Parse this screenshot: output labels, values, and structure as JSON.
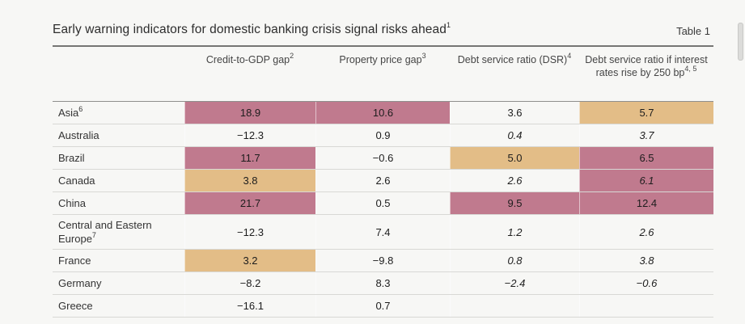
{
  "page": {
    "title": "Early warning indicators for domestic banking crisis signal risks ahead",
    "title_sup": "1",
    "table_label": "Table 1"
  },
  "colors": {
    "highlight_pink": "#c07a8e",
    "highlight_tan": "#e3bd87",
    "page_background": "#f7f7f5"
  },
  "table": {
    "columns": [
      {
        "label": "Credit-to-GDP gap",
        "sup": "2"
      },
      {
        "label": "Property price gap",
        "sup": "3"
      },
      {
        "label": "Debt service ratio (DSR)",
        "sup": "4"
      },
      {
        "label": "Debt service ratio if interest rates rise by 250 bp",
        "sup": "4, 5"
      }
    ],
    "rows": [
      {
        "label": "Asia",
        "sup": "6",
        "cells": [
          {
            "v": "18.9",
            "hl": "pink"
          },
          {
            "v": "10.6",
            "hl": "pink"
          },
          {
            "v": "3.6"
          },
          {
            "v": "5.7",
            "hl": "tan"
          }
        ]
      },
      {
        "label": "Australia",
        "cells": [
          {
            "v": "−12.3"
          },
          {
            "v": "0.9"
          },
          {
            "v": "0.4",
            "i": true
          },
          {
            "v": "3.7",
            "i": true
          }
        ]
      },
      {
        "label": "Brazil",
        "cells": [
          {
            "v": "11.7",
            "hl": "pink"
          },
          {
            "v": "−0.6"
          },
          {
            "v": "5.0",
            "hl": "tan"
          },
          {
            "v": "6.5",
            "hl": "pink"
          }
        ]
      },
      {
        "label": "Canada",
        "cells": [
          {
            "v": "3.8",
            "hl": "tan"
          },
          {
            "v": "2.6"
          },
          {
            "v": "2.6",
            "i": true
          },
          {
            "v": "6.1",
            "hl": "pink",
            "i": true
          }
        ]
      },
      {
        "label": "China",
        "cells": [
          {
            "v": "21.7",
            "hl": "pink"
          },
          {
            "v": "0.5"
          },
          {
            "v": "9.5",
            "hl": "pink"
          },
          {
            "v": "12.4",
            "hl": "pink"
          }
        ]
      },
      {
        "label": "Central and Eastern Europe",
        "sup": "7",
        "cells": [
          {
            "v": "−12.3"
          },
          {
            "v": "7.4"
          },
          {
            "v": "1.2",
            "i": true
          },
          {
            "v": "2.6",
            "i": true
          }
        ]
      },
      {
        "label": "France",
        "cells": [
          {
            "v": "3.2",
            "hl": "tan"
          },
          {
            "v": "−9.8"
          },
          {
            "v": "0.8",
            "i": true
          },
          {
            "v": "3.8",
            "i": true
          }
        ]
      },
      {
        "label": "Germany",
        "cells": [
          {
            "v": "−8.2"
          },
          {
            "v": "8.3"
          },
          {
            "v": "−2.4",
            "i": true
          },
          {
            "v": "−0.6",
            "i": true
          }
        ]
      },
      {
        "label": "Greece",
        "cells": [
          {
            "v": "−16.1"
          },
          {
            "v": "0.7"
          },
          {
            "v": ""
          },
          {
            "v": ""
          }
        ]
      }
    ]
  }
}
